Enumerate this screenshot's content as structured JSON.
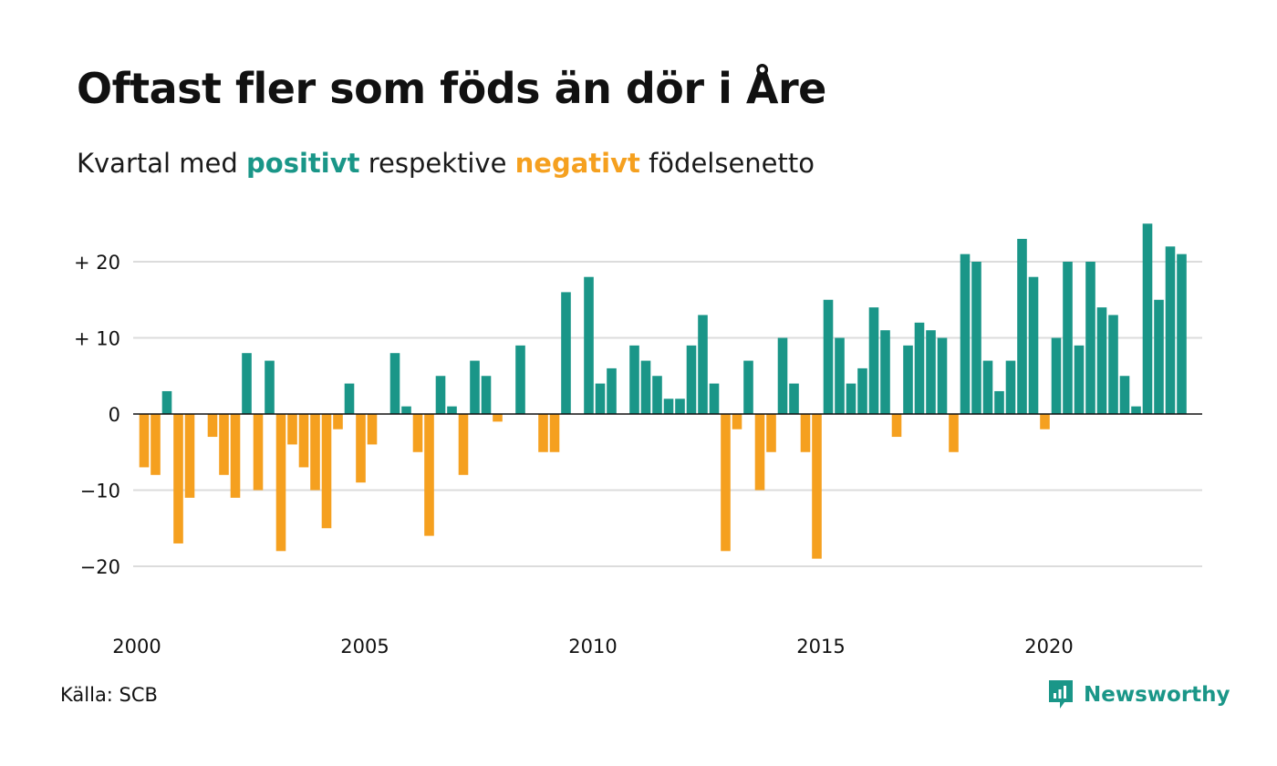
{
  "title": "Oftast fler som föds än dör i Åre",
  "subtitle": {
    "prefix": "Kvartal med ",
    "positive": "positivt",
    "middle": " respektive ",
    "negative": "negativt",
    "suffix": " födelsenetto"
  },
  "colors": {
    "positive": "#1a9688",
    "negative": "#f5a01f",
    "grid": "#dcdcdc",
    "axis": "#111111"
  },
  "source": "Källa: SCB",
  "brand": {
    "name": "Newsworthy",
    "icon": "newsworthy-logo-icon"
  },
  "chart_data": {
    "type": "bar",
    "x_unit": "quarter",
    "start": "2000 Q1",
    "values": [
      -7,
      -8,
      3,
      -17,
      -11,
      0,
      -3,
      -8,
      -11,
      8,
      -10,
      7,
      -18,
      -4,
      -7,
      -10,
      -15,
      -2,
      4,
      -9,
      -4,
      0,
      8,
      1,
      -5,
      -16,
      5,
      1,
      -8,
      7,
      5,
      -1,
      0,
      9,
      0,
      -5,
      -5,
      16,
      0,
      18,
      4,
      6,
      0,
      9,
      7,
      5,
      2,
      2,
      9,
      13,
      4,
      -18,
      -2,
      7,
      -10,
      -5,
      10,
      4,
      -5,
      -19,
      15,
      10,
      4,
      6,
      14,
      11,
      -3,
      9,
      12,
      11,
      10,
      -5,
      21,
      20,
      7,
      3,
      7,
      23,
      18,
      -2,
      10,
      20,
      9,
      20,
      14,
      13,
      5,
      1,
      25,
      15,
      22,
      21
    ],
    "x_ticks": [
      "2000",
      "2005",
      "2010",
      "2015",
      "2020"
    ],
    "y_ticks": [
      {
        "value": 20,
        "label": "+ 20"
      },
      {
        "value": 10,
        "label": "+ 10"
      },
      {
        "value": 0,
        "label": "0"
      },
      {
        "value": -10,
        "label": "−10"
      },
      {
        "value": -20,
        "label": "−20"
      }
    ],
    "ylim": [
      -27,
      27
    ],
    "xlabel": "",
    "ylabel": "",
    "grid": true,
    "legend": "none"
  }
}
